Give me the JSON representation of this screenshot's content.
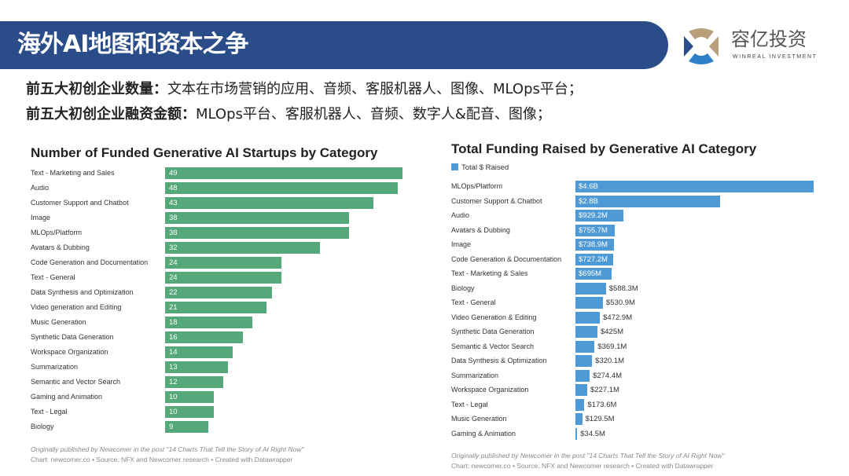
{
  "header": {
    "title": "海外AI地图和资本之争",
    "logo_cn": "容亿投资",
    "logo_en": "WINREAL INVESTMENT"
  },
  "summary": [
    {
      "label": "前五大初创企业数量：",
      "text": "文本在市场营销的应用、音频、客服机器人、图像、MLOps平台；"
    },
    {
      "label": "前五大初创企业融资金额：",
      "text": "MLOps平台、客服机器人、音频、数字人&配音、图像；"
    }
  ],
  "colors": {
    "band": "#2a4d8a",
    "green": "#55a87a",
    "blue": "#4e9ad6"
  },
  "chart_data": [
    {
      "type": "bar",
      "orientation": "horizontal",
      "title": "Number of Funded Generative AI Startups by Category",
      "categories": [
        "Text - Marketing and Sales",
        "Audio",
        "Customer Support and Chatbot",
        "Image",
        "MLOps/Platform",
        "Avatars & Dubbing",
        "Code Generation and Documentation",
        "Text - General",
        "Data Synthesis and Optimization",
        "Video generation and Editing",
        "Music Generation",
        "Synthetic Data Generation",
        "Workspace Organization",
        "Summarization",
        "Semantic and Vector Search",
        "Gaming and Animation",
        "Text - Legal",
        "Biology"
      ],
      "values": [
        49,
        48,
        43,
        38,
        38,
        32,
        24,
        24,
        22,
        21,
        18,
        16,
        14,
        13,
        12,
        10,
        10,
        9
      ],
      "xlim": [
        0,
        49
      ],
      "footer": [
        "Originally published by Newcomer in the post \"14 Charts That Tell the Story of AI Right Now\"",
        "Chart: newcomer.co • Source: NFX and Newcomer research • Created with Datawrapper"
      ]
    },
    {
      "type": "bar",
      "orientation": "horizontal",
      "title": "Total Funding Raised by Generative AI Category",
      "legend": [
        "Total $ Raised"
      ],
      "categories": [
        "MLOps/Platform",
        "Customer Support & Chatbot",
        "Audio",
        "Avatars & Dubbing",
        "Image",
        "Code Generation & Documentation",
        "Text - Marketing & Sales",
        "Biology",
        "Text - General",
        "Video Generation & Editing",
        "Synthetic Data Generation",
        "Semantic & Vector Search",
        "Data Synthesis & Optimization",
        "Summarization",
        "Workspace Organization",
        "Text - Legal",
        "Music Generation",
        "Gaming & Animation"
      ],
      "values_musd": [
        4600,
        2800,
        929.2,
        755.7,
        738.9,
        727.2,
        695,
        588.3,
        530.9,
        472.9,
        425,
        369.1,
        320.1,
        274.4,
        227.1,
        173.6,
        129.5,
        34.5
      ],
      "labels": [
        "$4.6B",
        "$2.8B",
        "$929.2M",
        "$755.7M",
        "$738.9M",
        "$727.2M",
        "$695M",
        "$588.3M",
        "$530.9M",
        "$472.9M",
        "$425M",
        "$369.1M",
        "$320.1M",
        "$274.4M",
        "$227.1M",
        "$173.6M",
        "$129.5M",
        "$34.5M"
      ],
      "xlim": [
        0,
        4600
      ],
      "footer": [
        "Originally published by Newcomer in the post \"14 Charts That Tell the Story of AI Right Now\"",
        "Chart: newcomer.co • Source: NFX and Newcomer research • Created with Datawrapper"
      ]
    }
  ]
}
